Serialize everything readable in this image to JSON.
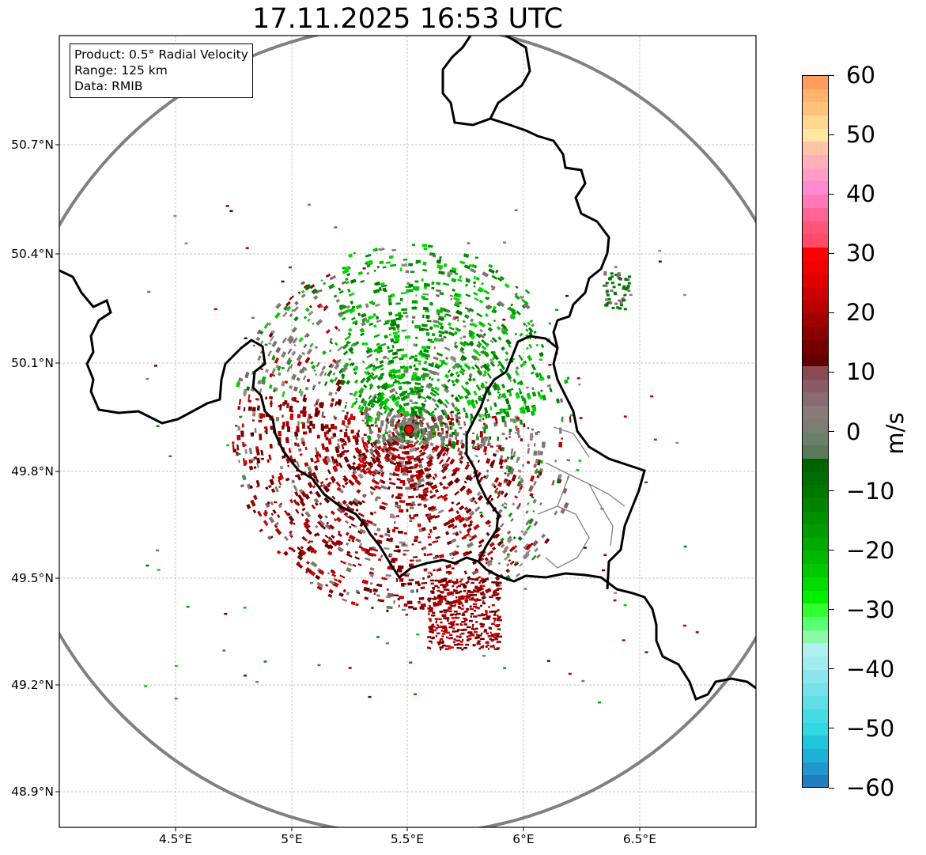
{
  "title": "17.11.2025 16:53 UTC",
  "info": {
    "product": "Product: 0.5° Radial Velocity",
    "range": "Range: 125 km",
    "source": "Data: RMIB"
  },
  "latitude_labels": [
    "50.7°N",
    "50.4°N",
    "50.1°N",
    "49.8°N",
    "49.5°N",
    "49.2°N",
    "48.9°N"
  ],
  "longitude_labels": [
    "4.5°E",
    "5°E",
    "5.5°E",
    "6°E",
    "6.5°E"
  ],
  "colorbar": {
    "unit": "m/s",
    "tick_labels": [
      "60",
      "50",
      "40",
      "30",
      "20",
      "10",
      "0",
      "−10",
      "−20",
      "−30",
      "−40",
      "−50",
      "−60"
    ],
    "range": [
      -60,
      60
    ],
    "colors_top_to_bottom": [
      "#ff9d5c",
      "#ffb26b",
      "#ffc27d",
      "#ffd88f",
      "#ffe6a1",
      "#ffc4a8",
      "#ffb0b8",
      "#ff9cc8",
      "#ff8ad2",
      "#ff78b8",
      "#ff6496",
      "#ff5578",
      "#ff4a68",
      "#ff0000",
      "#f00000",
      "#e00000",
      "#cc0000",
      "#b80000",
      "#a00000",
      "#8a0000",
      "#760000",
      "#650000",
      "#8a4a55",
      "#8a5a66",
      "#8a6a73",
      "#8a7a7a",
      "#7a7e72",
      "#6a8068",
      "#5a7a5a",
      "#006400",
      "#006e00",
      "#007800",
      "#008400",
      "#009000",
      "#009c00",
      "#00aa00",
      "#00b800",
      "#00c800",
      "#00dc00",
      "#00f000",
      "#30ff30",
      "#58ff70",
      "#8cf8a8",
      "#b0f0f0",
      "#a0ebee",
      "#8ae6ea",
      "#74e2e8",
      "#5edee6",
      "#48dae4",
      "#30d8e0",
      "#22c6dc",
      "#1fb0d6",
      "#1f98cc",
      "#1f7fc0"
    ]
  },
  "radar_site": {
    "lat": 49.914,
    "lon": 5.505,
    "color": "#ff0000"
  },
  "map_extent": {
    "lon": [
      4.0,
      7.0
    ],
    "lat": [
      48.8,
      51.0
    ]
  },
  "colors": {
    "range_ring": "#808080",
    "country_border": "#000000",
    "region_border": "#808080",
    "gridline": "#b0b0b0"
  }
}
